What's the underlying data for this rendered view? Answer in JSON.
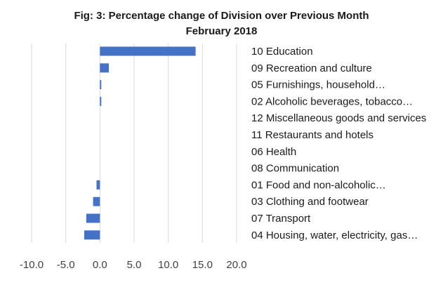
{
  "chart_data": {
    "type": "bar",
    "orientation": "horizontal",
    "title": "Fig: 3: Percentage change of Division over Previous Month",
    "subtitle": "February 2018",
    "xlabel": "",
    "ylabel": "",
    "xlim": [
      -10,
      20
    ],
    "x_ticks": [
      -10,
      -5,
      0,
      5,
      10,
      15,
      20
    ],
    "x_tick_labels": [
      "-10.0",
      "-5.0",
      "0.0",
      "5.0",
      "10.0",
      "15.0",
      "20.0"
    ],
    "grid": "vertical",
    "legend": "none",
    "bar_color": "#4472c4",
    "categories": [
      "10 Education",
      "09 Recreation and culture",
      "05 Furnishings, household…",
      "02 Alcoholic beverages, tobacco…",
      "12 Miscellaneous goods and services",
      "11 Restaurants and hotels",
      "06 Health",
      "08 Communication",
      "01 Food and non-alcoholic…",
      "03 Clothing and footwear",
      "07 Transport",
      "04 Housing, water, electricity, gas…"
    ],
    "values": [
      14.0,
      1.3,
      0.2,
      0.2,
      0.0,
      0.0,
      0.0,
      0.0,
      -0.5,
      -1.0,
      -2.0,
      -2.3
    ]
  }
}
